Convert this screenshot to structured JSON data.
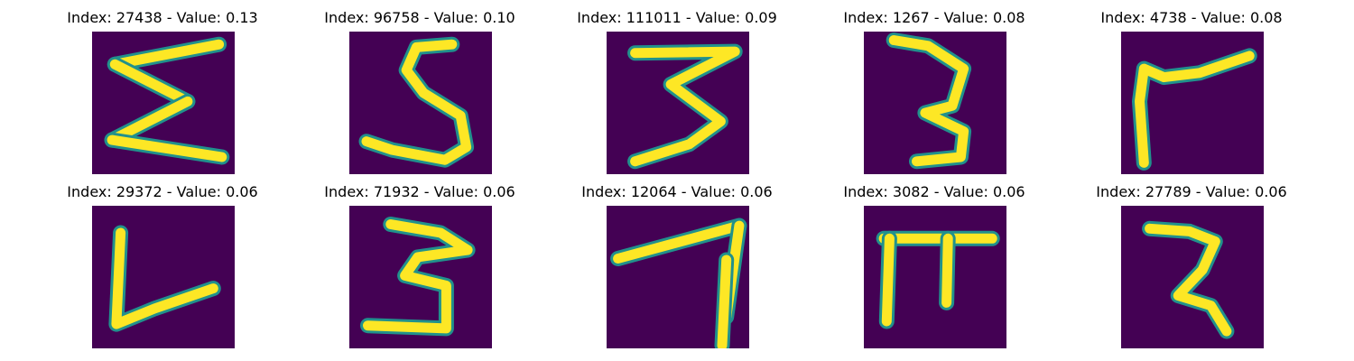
{
  "chart_data": {
    "type": "image_grid",
    "layout": {
      "rows": 2,
      "cols": 5
    },
    "colors": {
      "background": "#440154",
      "mid": "#21918c",
      "stroke": "#fde725"
    },
    "panels": [
      {
        "title": "Index: 27438 - Value: 0.13",
        "index": 27438,
        "value": 0.13,
        "glyph": "sigma-like strokes",
        "strokes": [
          [
            [
              0.16,
              0.23
            ],
            [
              0.89,
              0.09
            ]
          ],
          [
            [
              0.16,
              0.23
            ],
            [
              0.67,
              0.49
            ]
          ],
          [
            [
              0.67,
              0.49
            ],
            [
              0.14,
              0.76
            ]
          ],
          [
            [
              0.14,
              0.76
            ],
            [
              0.91,
              0.88
            ]
          ]
        ]
      },
      {
        "title": "Index: 96758 - Value: 0.10",
        "index": 96758,
        "value": 0.1,
        "glyph": "S-like stroke",
        "strokes": [
          [
            [
              0.72,
              0.09
            ],
            [
              0.47,
              0.11
            ],
            [
              0.4,
              0.27
            ],
            [
              0.52,
              0.43
            ],
            [
              0.78,
              0.59
            ],
            [
              0.82,
              0.81
            ],
            [
              0.67,
              0.9
            ],
            [
              0.3,
              0.83
            ],
            [
              0.12,
              0.77
            ]
          ]
        ]
      },
      {
        "title": "Index: 111011 - Value: 0.09",
        "index": 111011,
        "value": 0.09,
        "glyph": "3-like strokes",
        "strokes": [
          [
            [
              0.2,
              0.15
            ],
            [
              0.9,
              0.14
            ],
            [
              0.45,
              0.37
            ],
            [
              0.8,
              0.63
            ],
            [
              0.58,
              0.79
            ],
            [
              0.2,
              0.91
            ]
          ]
        ]
      },
      {
        "title": "Index: 1267 - Value: 0.08",
        "index": 1267,
        "value": 0.08,
        "glyph": "3-like strokes",
        "strokes": [
          [
            [
              0.21,
              0.06
            ],
            [
              0.45,
              0.1
            ],
            [
              0.7,
              0.26
            ],
            [
              0.62,
              0.52
            ],
            [
              0.43,
              0.57
            ],
            [
              0.7,
              0.7
            ],
            [
              0.68,
              0.88
            ],
            [
              0.37,
              0.91
            ]
          ]
        ]
      },
      {
        "title": "Index: 4738 - Value: 0.08",
        "index": 4738,
        "value": 0.08,
        "glyph": "bent stroke",
        "strokes": [
          [
            [
              0.16,
              0.92
            ],
            [
              0.13,
              0.49
            ],
            [
              0.16,
              0.26
            ],
            [
              0.3,
              0.32
            ],
            [
              0.55,
              0.29
            ],
            [
              0.9,
              0.17
            ]
          ]
        ]
      },
      {
        "title": "Index: 29372 - Value: 0.06",
        "index": 29372,
        "value": 0.06,
        "glyph": "L-like stroke",
        "strokes": [
          [
            [
              0.2,
              0.19
            ],
            [
              0.17,
              0.83
            ],
            [
              0.44,
              0.72
            ],
            [
              0.85,
              0.58
            ]
          ]
        ]
      },
      {
        "title": "Index: 71932 - Value: 0.06",
        "index": 71932,
        "value": 0.06,
        "glyph": "3-like strokes",
        "strokes": [
          [
            [
              0.29,
              0.13
            ],
            [
              0.64,
              0.19
            ],
            [
              0.83,
              0.31
            ],
            [
              0.48,
              0.36
            ],
            [
              0.39,
              0.49
            ],
            [
              0.68,
              0.56
            ],
            [
              0.68,
              0.86
            ],
            [
              0.13,
              0.84
            ]
          ]
        ]
      },
      {
        "title": "Index: 12064 - Value: 0.06",
        "index": 12064,
        "value": 0.06,
        "glyph": "T-like strokes",
        "strokes": [
          [
            [
              0.08,
              0.37
            ],
            [
              0.93,
              0.14
            ]
          ],
          [
            [
              0.93,
              0.14
            ],
            [
              0.84,
              0.78
            ]
          ],
          [
            [
              0.84,
              0.38
            ],
            [
              0.81,
              0.98
            ]
          ]
        ]
      },
      {
        "title": "Index: 3082 - Value: 0.06",
        "index": 3082,
        "value": 0.06,
        "glyph": "pi-like strokes",
        "strokes": [
          [
            [
              0.14,
              0.23
            ],
            [
              0.9,
              0.23
            ]
          ],
          [
            [
              0.18,
              0.23
            ],
            [
              0.16,
              0.81
            ]
          ],
          [
            [
              0.59,
              0.23
            ],
            [
              0.58,
              0.68
            ]
          ]
        ]
      },
      {
        "title": "Index: 27789 - Value: 0.06",
        "index": 27789,
        "value": 0.06,
        "glyph": "reversed-R-like strokes",
        "strokes": [
          [
            [
              0.2,
              0.16
            ],
            [
              0.48,
              0.18
            ],
            [
              0.66,
              0.25
            ],
            [
              0.57,
              0.45
            ],
            [
              0.4,
              0.63
            ],
            [
              0.63,
              0.7
            ],
            [
              0.74,
              0.88
            ]
          ]
        ]
      }
    ]
  }
}
